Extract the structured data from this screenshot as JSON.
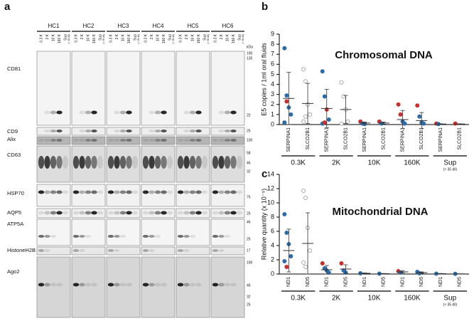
{
  "panel_a": {
    "label": "a",
    "subjects": [
      "HC1",
      "HC2",
      "HC3",
      "HC4",
      "HC5",
      "HC6"
    ],
    "lanes": [
      "0.3 K",
      "2 K",
      "10 K",
      "160 K",
      "Sup"
    ],
    "lane_note": "(× 35 dil)",
    "unit": "kDa",
    "rows": [
      "CD81",
      "CD9",
      "Alix",
      "CD63",
      "HSP70",
      "AQP5",
      "ATP5A",
      "HistoneH2B",
      "Ago2"
    ],
    "markers": [
      190,
      135,
      22,
      25,
      100,
      58,
      46,
      32,
      75,
      25,
      46,
      25,
      17,
      190,
      46,
      32,
      25
    ]
  },
  "chart_data": [
    {
      "type": "dot",
      "panel_label": "b",
      "title": "Chromosomal DNA",
      "ylabel": "E5 copies / 1ml oral fluids",
      "ylim": [
        0,
        9
      ],
      "yticks": [
        0,
        1,
        2,
        3,
        4,
        5,
        6,
        7,
        8,
        9
      ],
      "categories": [
        "SERPINA1",
        "SLCO2B1",
        "SERPINA1",
        "SLCO2B1",
        "SERPINA1",
        "SLCO2B1",
        "SERPINA1",
        "SLCO2B1",
        "SERPINA1",
        "SLCO2B1"
      ],
      "groups": [
        "0.3K",
        "2K",
        "10K",
        "160K",
        "Sup"
      ],
      "group_note": "(× 35 dil)",
      "points": [
        [
          7.6,
          2.9,
          1.7,
          1.0,
          0.2,
          2.3
        ],
        [
          5.5,
          4.3,
          2.0,
          1.0,
          0.3,
          0.8
        ],
        [
          5.3,
          2.8,
          1.5,
          0.5,
          0.1,
          0.2
        ],
        [
          4.2,
          2.8,
          1.5,
          0.3,
          0.1
        ],
        [
          0.3,
          0.1,
          0.05
        ],
        [
          0.3,
          0.1
        ],
        [
          2.0,
          1.0,
          0.3,
          0.1
        ],
        [
          1.9,
          0.8,
          0.2,
          0.1
        ],
        [
          0.1,
          0.05
        ],
        [
          0.1
        ]
      ],
      "point_colors": [
        [
          "#2d6ca8",
          "#2d6ca8",
          "#2d6ca8",
          "#2d6ca8",
          "#2d6ca8",
          "#c9302c"
        ],
        [
          "#ffffff",
          "#ffffff",
          "#ffffff",
          "#ffffff",
          "#ffffff",
          "#ffffff"
        ],
        [
          "#2d6ca8",
          "#2d6ca8",
          "#c9302c",
          "#2d6ca8",
          "#2d6ca8",
          "#c9302c"
        ],
        [
          "#ffffff",
          "#ffffff",
          "#ffffff",
          "#ffffff",
          "#ffffff"
        ],
        [
          "#c9302c",
          "#2d6ca8",
          "#2d6ca8"
        ],
        [
          "#c9302c",
          "#2d6ca8"
        ],
        [
          "#c9302c",
          "#c9302c",
          "#2d6ca8",
          "#2d6ca8"
        ],
        [
          "#c9302c",
          "#2d6ca8",
          "#2d6ca8",
          "#2d6ca8"
        ],
        [
          "#c9302c",
          "#2d6ca8"
        ],
        [
          "#c9302c"
        ]
      ],
      "means": [
        2.6,
        2.1,
        1.6,
        1.5,
        0.15,
        0.15,
        0.5,
        0.4,
        0.05,
        0.05
      ],
      "sds": [
        2.6,
        2.0,
        1.9,
        1.4,
        0.1,
        0.1,
        0.9,
        0.8,
        0.03,
        0.03
      ]
    },
    {
      "type": "dot",
      "panel_label": "c",
      "title": "Mitochondrial DNA",
      "ylabel": "Relative quantity (x 10⁻⁵)",
      "ylim": [
        0,
        14
      ],
      "yticks": [
        0,
        2,
        4,
        6,
        8,
        10,
        12,
        14
      ],
      "categories": [
        "ND1",
        "ND5",
        "ND1",
        "ND5",
        "ND1",
        "ND5",
        "ND1",
        "ND5",
        "ND1",
        "ND5"
      ],
      "groups": [
        "0.3K",
        "2K",
        "10K",
        "160K",
        "Sup"
      ],
      "group_note": "(× 35 dil)",
      "points": [
        [
          8.4,
          5.8,
          4.2,
          2.5,
          1.8,
          1.0
        ],
        [
          11.7,
          10.7,
          6.5,
          3.3,
          1.6,
          1.0
        ],
        [
          1.5,
          0.8,
          0.5,
          0.2
        ],
        [
          1.5,
          0.5,
          0.2
        ],
        [
          0.1
        ],
        [
          0.05
        ],
        [
          0.4,
          0.2
        ],
        [
          0.3,
          0.1
        ],
        [
          0.05
        ],
        [
          0.02
        ]
      ],
      "point_colors": [
        [
          "#2d6ca8",
          "#2d6ca8",
          "#2d6ca8",
          "#2d6ca8",
          "#2d6ca8",
          "#c9302c"
        ],
        [
          "#ffffff",
          "#ffffff",
          "#ffffff",
          "#ffffff",
          "#ffffff",
          "#ffffff"
        ],
        [
          "#c9302c",
          "#2d6ca8",
          "#2d6ca8",
          "#2d6ca8"
        ],
        [
          "#c9302c",
          "#2d6ca8",
          "#2d6ca8"
        ],
        [
          "#2d6ca8"
        ],
        [
          "#2d6ca8"
        ],
        [
          "#c9302c",
          "#2d6ca8"
        ],
        [
          "#2d6ca8",
          "#2d6ca8"
        ],
        [
          "#2d6ca8"
        ],
        [
          "#2d6ca8"
        ]
      ],
      "means": [
        3.3,
        4.3,
        0.6,
        0.7,
        0.1,
        0.05,
        0.3,
        0.2,
        0.05,
        0.02
      ],
      "sds": [
        3.0,
        4.3,
        0.6,
        0.6,
        0.05,
        0.03,
        0.15,
        0.1,
        0.03,
        0.01
      ]
    }
  ]
}
